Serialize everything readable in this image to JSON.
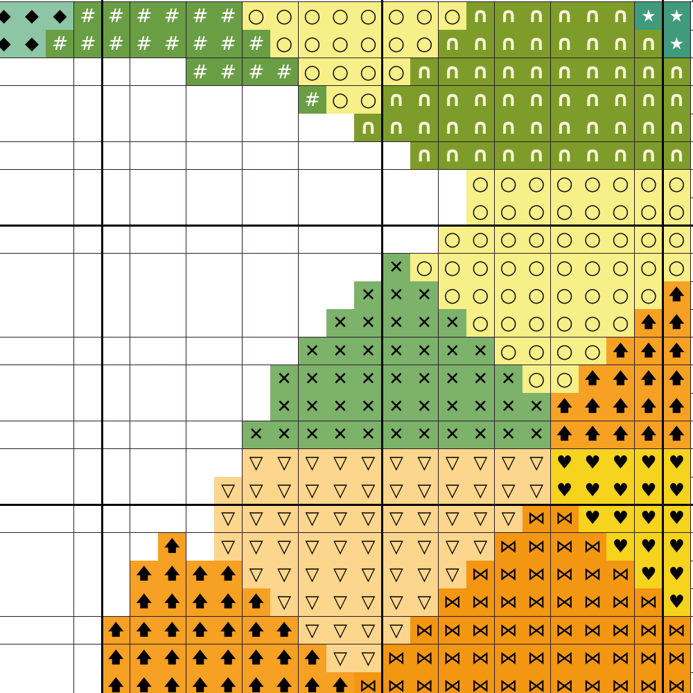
{
  "pattern": {
    "key": {
      ".": {
        "symbol": "",
        "bg": "#ffffff",
        "fg": "#000000",
        "name": "empty"
      },
      "D": {
        "symbol": "◆",
        "bg": "#8dc6a4",
        "fg": "#000000",
        "name": "diamond"
      },
      "H": {
        "symbol": "#",
        "bg": "#6a9e45",
        "fg": "#ffffff",
        "name": "hash"
      },
      "O": {
        "symbol": "○",
        "bg": "#f7ef88",
        "fg": "#111111",
        "name": "circle"
      },
      "A": {
        "symbol": "∩",
        "bg": "#7e9c2a",
        "fg": "#f6f4d8",
        "name": "arch"
      },
      "S": {
        "symbol": "★",
        "bg": "#3f9b7b",
        "fg": "#ffffff",
        "name": "star"
      },
      "X": {
        "symbol": "✕",
        "bg": "#7cb26a",
        "fg": "#000000",
        "name": "cross"
      },
      "U": {
        "symbol": "🡅",
        "bg": "#f6a024",
        "fg": "#000000",
        "name": "up-arrow"
      },
      "V": {
        "symbol": "▽",
        "bg": "#fcd68c",
        "fg": "#000000",
        "name": "triangle-down"
      },
      "L": {
        "symbol": "♥",
        "bg": "#f6d31c",
        "fg": "#000000",
        "name": "heart"
      },
      "B": {
        "symbol": "⋈",
        "bg": "#f39612",
        "fg": "#000000",
        "name": "bowtie"
      }
    },
    "rows": [
      "DDDHHHHHHOOOOOOOOAAAAAASS",
      "DDHHHHHHHHOOOOOOAAAAAAAAS",
      ".......HHHHOOOOAAAAAAAAAA",
      "...........HOOAAAAAAAAAAA",
      ".............AAAAAAAAAAAA",
      "...............AAAAAAAAAA",
      ".................OOOOOOOO",
      ".................OOOOOOOO",
      "................OOOOOOOOO",
      "..............XOOOOOOOOOO",
      ".............XXXOOOOOOOOU",
      "............XXXXXOOOOOOUU",
      "...........XXXXXXXOOOOUUU",
      "..........XXXXXXXXXOOUUUU",
      "..........XXXXXXXXXXUUUUU",
      ".........XXXXXXXXXXXUUUUU",
      ".........VVVVVVVVVVVLLLLL",
      "........VVVVVVVVVVVVLLLLL",
      "........VVVVVVVVVVVBBLLLL",
      "......U.VVVVVVVVVVBBBBLLL",
      ".....UUUUVVVVVVVVBBBBBBLL",
      ".....UUUUUVVVVVVBBBBBBBBL",
      "....UUUUUUUVVVVBBBBBBBBBB",
      "....UUUUUUUUVVBBBBBBBBBBB",
      "....UUUUUUUUUBBBBBBBBBBBB"
    ]
  }
}
